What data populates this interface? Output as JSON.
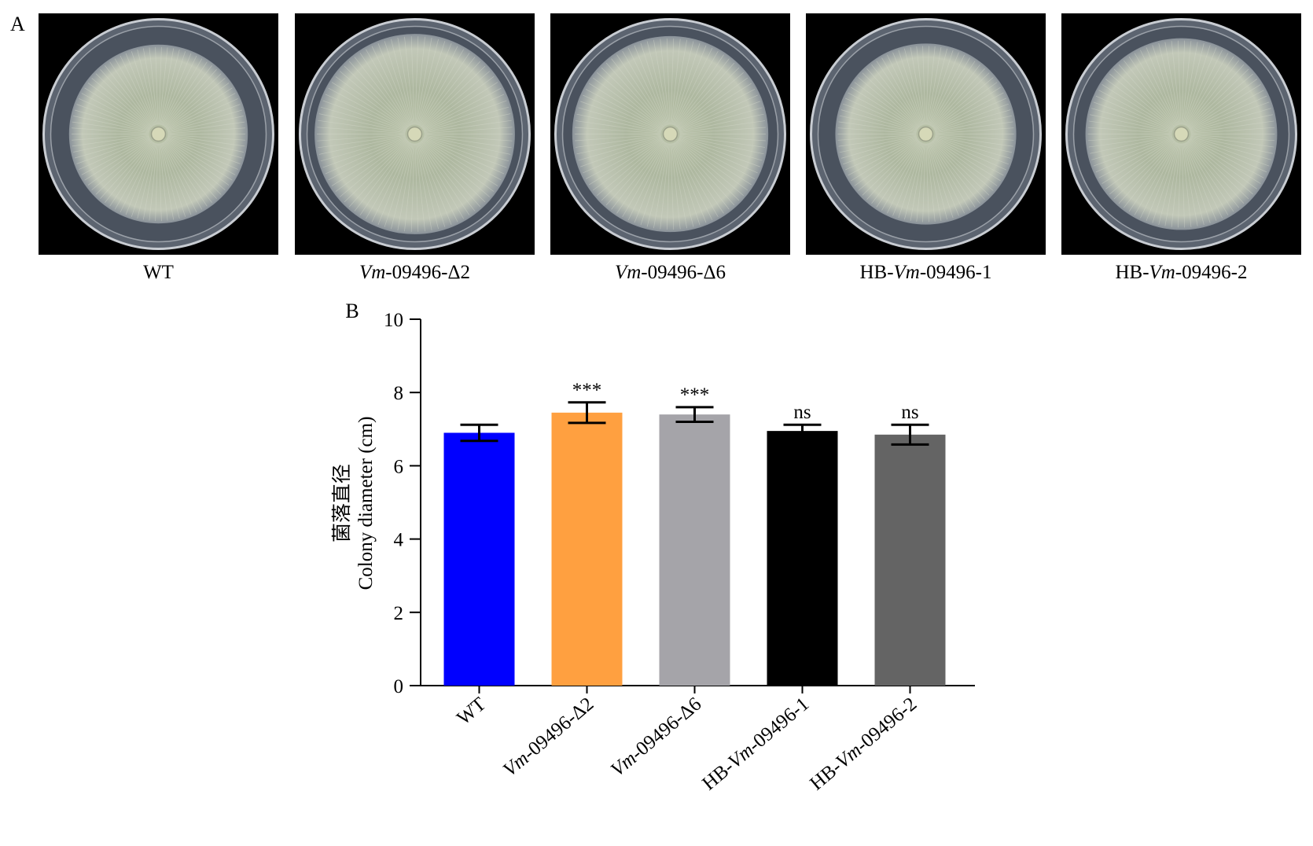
{
  "panels": {
    "a": "A",
    "b": "B"
  },
  "plates": [
    {
      "pre": "",
      "it": "",
      "post": "WT",
      "colony": 0.83
    },
    {
      "pre": "",
      "it": "Vm",
      "post": "-09496-Δ2",
      "colony": 0.93
    },
    {
      "pre": "",
      "it": "Vm",
      "post": "-09496-Δ6",
      "colony": 0.91
    },
    {
      "pre": "HB-",
      "it": "Vm",
      "post": "-09496-1",
      "colony": 0.84
    },
    {
      "pre": "HB-",
      "it": "Vm",
      "post": "-09496-2",
      "colony": 0.89
    }
  ],
  "chart_data": {
    "type": "bar",
    "ylabel_cn": "菌落直径",
    "ylabel": "Colony diameter (cm)",
    "ylim": [
      0,
      10
    ],
    "yticks": [
      0,
      2,
      4,
      6,
      8,
      10
    ],
    "categories": [
      {
        "pre": "",
        "it": "",
        "post": "WT"
      },
      {
        "pre": "",
        "it": "Vm",
        "post": "-09496-Δ2"
      },
      {
        "pre": "",
        "it": "Vm",
        "post": "-09496-Δ6"
      },
      {
        "pre": "HB-",
        "it": "Vm",
        "post": "-09496-1"
      },
      {
        "pre": "HB-",
        "it": "Vm",
        "post": "-09496-2"
      }
    ],
    "values": [
      6.9,
      7.45,
      7.4,
      6.95,
      6.85
    ],
    "error": [
      0.22,
      0.28,
      0.2,
      0.17,
      0.27
    ],
    "annotations": [
      "",
      "***",
      "***",
      "ns",
      "ns"
    ],
    "colors": [
      "#0000ff",
      "#ffa040",
      "#a5a4a9",
      "#000000",
      "#646464"
    ],
    "grid": false,
    "legend": "none"
  }
}
